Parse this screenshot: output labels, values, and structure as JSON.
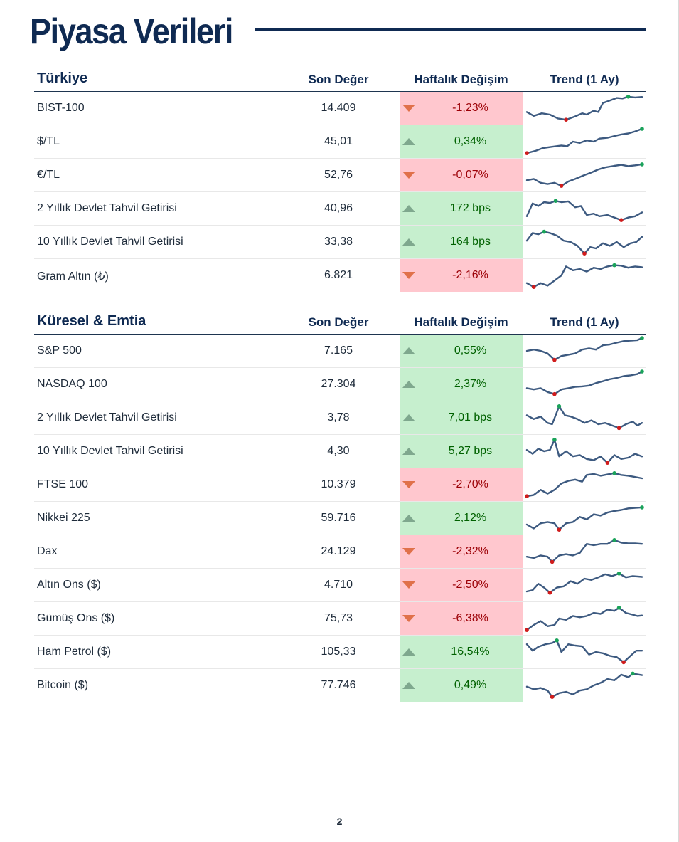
{
  "page": {
    "title": "Piyasa Verileri",
    "page_number": "2"
  },
  "colors": {
    "navy": "#0f2a52",
    "up_fill": "#c6efce",
    "up_text": "#006100",
    "down_fill": "#ffc7ce",
    "down_text": "#9c0006",
    "spark": "#3d5a80",
    "max_marker": "#1aa35a",
    "min_marker": "#d01c1c"
  },
  "sections": [
    {
      "title": "Türkiye",
      "headers": {
        "last": "Son Değer",
        "change": "Haftalık Değişim",
        "trend": "Trend (1 Ay)"
      },
      "rows": [
        {
          "name": "BIST-100",
          "last": "14.409",
          "change": "-1,23%",
          "direction": "down"
        },
        {
          "name": "$/TL",
          "last": "45,01",
          "change": "0,34%",
          "direction": "up"
        },
        {
          "name": "€/TL",
          "last": "52,76",
          "change": "-0,07%",
          "direction": "down"
        },
        {
          "name": "2 Yıllık Devlet Tahvil Getirisi",
          "last": "40,96",
          "change": "172 bps",
          "direction": "up"
        },
        {
          "name": "10 Yıllık Devlet Tahvil Getirisi",
          "last": "33,38",
          "change": "164 bps",
          "direction": "up"
        },
        {
          "name": "Gram Altın (₺)",
          "last": "6.821",
          "change": "-2,16%",
          "direction": "down"
        }
      ]
    },
    {
      "title": "Küresel & Emtia",
      "headers": {
        "last": "Son Değer",
        "change": "Haftalık Değişim",
        "trend": "Trend (1 Ay)"
      },
      "rows": [
        {
          "name": "S&P 500",
          "last": "7.165",
          "change": "0,55%",
          "direction": "up"
        },
        {
          "name": "NASDAQ 100",
          "last": "27.304",
          "change": "2,37%",
          "direction": "up"
        },
        {
          "name": "2 Yıllık Devlet Tahvil Getirisi",
          "last": "3,78",
          "change": "7,01 bps",
          "direction": "up"
        },
        {
          "name": "10 Yıllık Devlet Tahvil Getirisi",
          "last": "4,30",
          "change": "5,27 bps",
          "direction": "up"
        },
        {
          "name": "FTSE 100",
          "last": "10.379",
          "change": "-2,70%",
          "direction": "down"
        },
        {
          "name": "Nikkei 225",
          "last": "59.716",
          "change": "2,12%",
          "direction": "up"
        },
        {
          "name": "Dax",
          "last": "24.129",
          "change": "-2,32%",
          "direction": "down"
        },
        {
          "name": "Altın Ons ($)",
          "last": "4.710",
          "change": "-2,50%",
          "direction": "down"
        },
        {
          "name": "Gümüş Ons ($)",
          "last": "75,73",
          "change": "-6,38%",
          "direction": "down"
        },
        {
          "name": "Ham Petrol ($)",
          "last": "105,33",
          "change": "16,54%",
          "direction": "up"
        },
        {
          "name": "Bitcoin ($)",
          "last": "77.746",
          "change": "0,49%",
          "direction": "up"
        }
      ]
    }
  ]
}
